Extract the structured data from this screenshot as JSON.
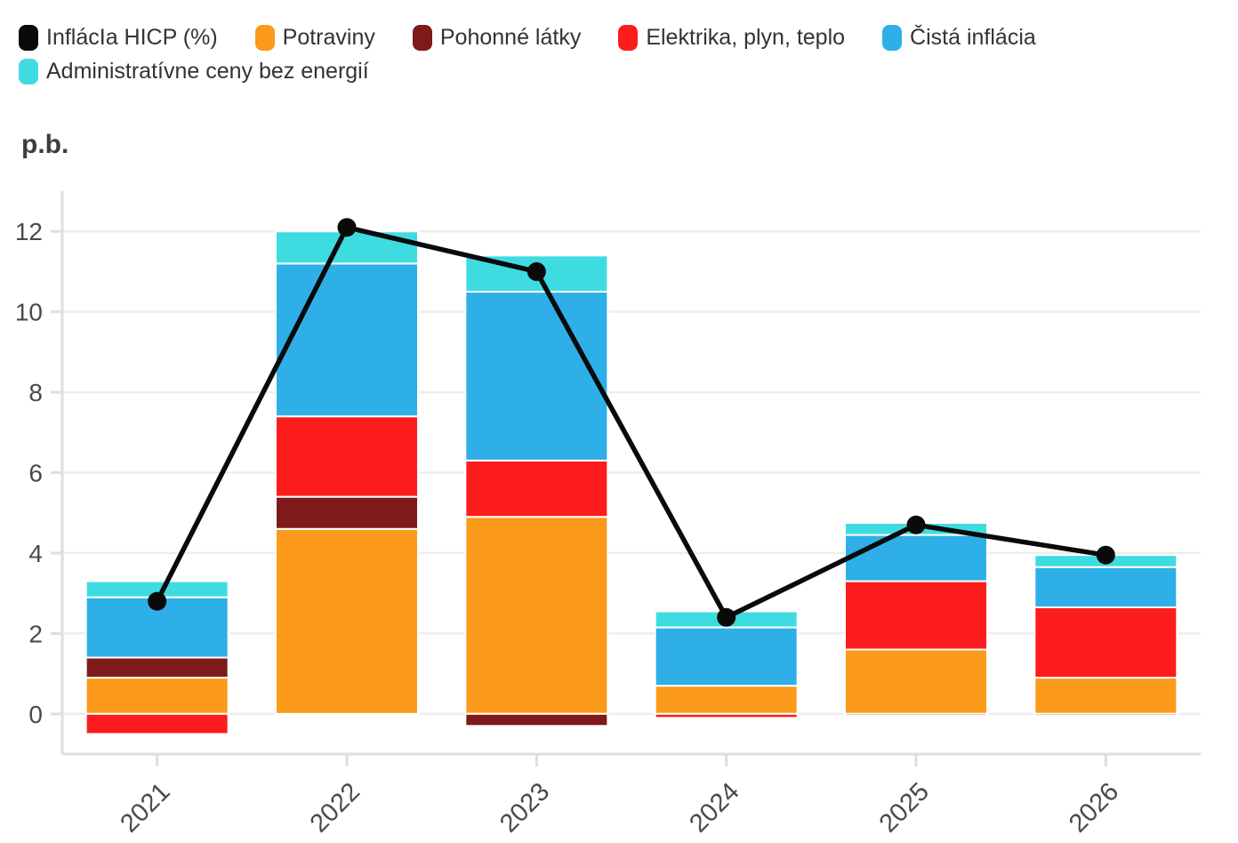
{
  "legend": {
    "items": [
      {
        "id": "inflacia-hicp",
        "label": "InflácIa HICP (%)",
        "color": "#0a0a0a"
      },
      {
        "id": "potraviny",
        "label": "Potraviny",
        "color": "#fb9a1b"
      },
      {
        "id": "pohonne-latky",
        "label": "Pohonné látky",
        "color": "#7e1a1a"
      },
      {
        "id": "elektrika-plyn-teplo",
        "label": "Elektrika, plyn, teplo",
        "color": "#fd1c1c"
      },
      {
        "id": "cista-inflacia",
        "label": "Čistá inflácia",
        "color": "#2fafe8"
      },
      {
        "id": "administrativne-ceny-bez-energii",
        "label": "Administratívne ceny bez energií",
        "color": "#3edce1"
      }
    ]
  },
  "chart_data": {
    "type": "bar",
    "subtype": "stacked-bars-with-line-overlay",
    "title": "",
    "ylabel": "p.b.",
    "xlabel": "",
    "categories": [
      "2021",
      "2022",
      "2023",
      "2024",
      "2025",
      "2026"
    ],
    "series": [
      {
        "name": "Potraviny",
        "color": "#fb9a1b",
        "values": [
          0.9,
          4.6,
          4.9,
          0.7,
          1.6,
          0.9
        ]
      },
      {
        "name": "Pohonné látky",
        "color": "#7e1a1a",
        "values": [
          0.5,
          0.8,
          -0.3,
          0,
          -0.05,
          -0.05
        ]
      },
      {
        "name": "Elektrika, plyn, teplo",
        "color": "#fd1c1c",
        "values": [
          -0.5,
          2.0,
          1.4,
          -0.1,
          1.7,
          1.75
        ]
      },
      {
        "name": "Čistá inflácia",
        "color": "#2fafe8",
        "values": [
          1.5,
          3.8,
          4.2,
          1.45,
          1.15,
          1.0
        ]
      },
      {
        "name": "Administratívne ceny bez energií",
        "color": "#3edce1",
        "values": [
          0.4,
          0.8,
          0.9,
          0.4,
          0.3,
          0.3
        ]
      }
    ],
    "line_series": {
      "name": "InflácIa HICP (%)",
      "color": "#0a0a0a",
      "values": [
        2.8,
        12.1,
        11.0,
        2.4,
        4.7,
        3.95
      ]
    },
    "yticks": [
      0,
      2,
      4,
      6,
      8,
      10,
      12
    ],
    "ylim": [
      -1,
      13
    ],
    "grid": true,
    "legend_position": "top",
    "styles": {
      "grid_color": "#ededed",
      "axis_color": "#dedede",
      "tick_text_color": "#4a4a4a",
      "bar_stroke": "#ffffff",
      "line_width": 5.5,
      "point_radius": 10.5
    }
  }
}
